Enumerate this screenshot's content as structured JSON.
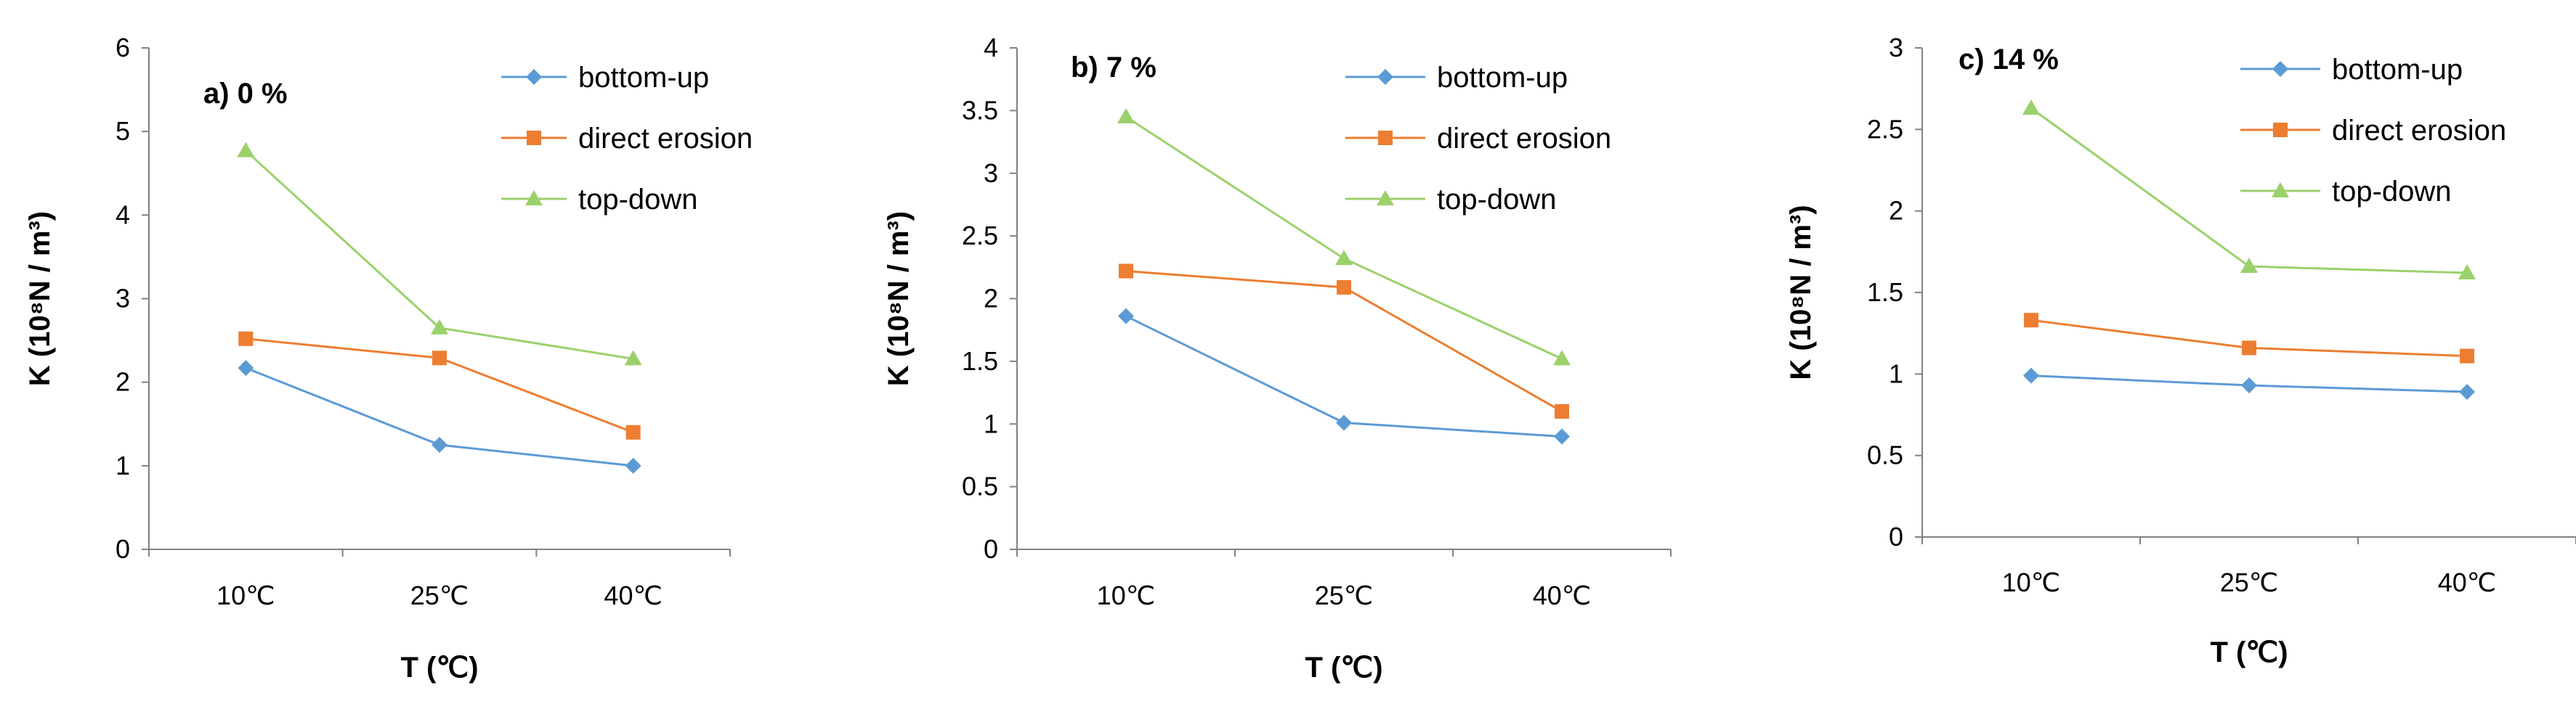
{
  "chart_data": [
    {
      "type": "line",
      "title": "a) 0 %",
      "xlabel": "T (℃)",
      "ylabel": "K (10⁸N / m³)",
      "categories": [
        "10℃",
        "25℃",
        "40℃"
      ],
      "ylim": [
        0,
        6
      ],
      "yticks": [
        0,
        1,
        2,
        3,
        4,
        5,
        6
      ],
      "ytick_labels": [
        "0",
        "1",
        "2",
        "3",
        "4",
        "5",
        "6"
      ],
      "grid": false,
      "legend_position": "top-right",
      "series": [
        {
          "name": "bottom-up",
          "values": [
            2.17,
            1.25,
            1.0
          ],
          "color": "#5b9bd5",
          "marker": "diamond"
        },
        {
          "name": "direct erosion",
          "values": [
            2.52,
            2.29,
            1.4
          ],
          "color": "#ed7d31",
          "marker": "square"
        },
        {
          "name": "top-down",
          "values": [
            4.77,
            2.65,
            2.28
          ],
          "color": "#9bd16b",
          "marker": "triangle"
        }
      ]
    },
    {
      "type": "line",
      "title": "b) 7 %",
      "xlabel": "T (℃)",
      "ylabel": "K (10⁸N / m³)",
      "categories": [
        "10℃",
        "25℃",
        "40℃"
      ],
      "ylim": [
        0,
        4
      ],
      "yticks": [
        0,
        0.5,
        1,
        1.5,
        2,
        2.5,
        3,
        3.5,
        4
      ],
      "ytick_labels": [
        "0",
        "0.5",
        "1",
        "1.5",
        "2",
        "2.5",
        "3",
        "3.5",
        "4"
      ],
      "grid": false,
      "legend_position": "top-right",
      "series": [
        {
          "name": "bottom-up",
          "values": [
            1.86,
            1.01,
            0.9
          ],
          "color": "#5b9bd5",
          "marker": "diamond"
        },
        {
          "name": "direct erosion",
          "values": [
            2.22,
            2.09,
            1.1
          ],
          "color": "#ed7d31",
          "marker": "square"
        },
        {
          "name": "top-down",
          "values": [
            3.45,
            2.32,
            1.52
          ],
          "color": "#9bd16b",
          "marker": "triangle"
        }
      ]
    },
    {
      "type": "line",
      "title": "c) 14 %",
      "xlabel": "T (℃)",
      "ylabel": "K (10⁸N / m³)",
      "categories": [
        "10℃",
        "25℃",
        "40℃"
      ],
      "ylim": [
        0,
        3
      ],
      "yticks": [
        0,
        0.5,
        1,
        1.5,
        2,
        2.5,
        3
      ],
      "ytick_labels": [
        "0",
        "0.5",
        "1",
        "1.5",
        "2",
        "2.5",
        "3"
      ],
      "grid": false,
      "legend_position": "top-right",
      "series": [
        {
          "name": "bottom-up",
          "values": [
            0.99,
            0.93,
            0.89
          ],
          "color": "#5b9bd5",
          "marker": "diamond"
        },
        {
          "name": "direct erosion",
          "values": [
            1.33,
            1.16,
            1.11
          ],
          "color": "#ed7d31",
          "marker": "square"
        },
        {
          "name": "top-down",
          "values": [
            2.63,
            1.66,
            1.62
          ],
          "color": "#9bd16b",
          "marker": "triangle"
        }
      ]
    }
  ]
}
